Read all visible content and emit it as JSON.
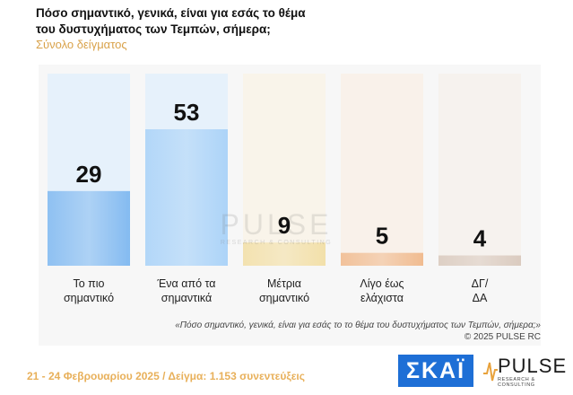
{
  "title_line1": "Πόσο σημαντικό, γενικά, είναι για εσάς το θέμα",
  "title_line2": "του δυστυχήματος των Τεμπών, σήμερα;",
  "subtitle": "Σύνολο δείγματος",
  "watermark": {
    "main": "PULSE",
    "sub": "RESEARCH & CONSULTING"
  },
  "source_note": "«Πόσο σημαντικό, γενικά, είναι για εσάς το το θέμα του δυστυχήματος των Τεμπών, σήμερα;»",
  "copyright": "©  2025  PULSE RC",
  "footer": {
    "text": "21 - 24 Φεβρουαρίου 2025  /  Δείγμα:  1.153 συνεντεύξεις"
  },
  "logos": {
    "skai": "ΣΚΑΪ",
    "pulse_main": "PULSE",
    "pulse_sub": "RESEARCH & CONSULTING"
  },
  "chart_data": {
    "type": "bar",
    "categories": [
      [
        "Το πιο",
        "σημαντικό"
      ],
      [
        "Ένα από τα",
        "σημαντικά"
      ],
      [
        "Μέτρια",
        "σημαντικό"
      ],
      [
        "Λίγο έως",
        "ελάχιστα"
      ],
      [
        "ΔΓ/",
        "ΔΑ"
      ]
    ],
    "values": [
      29,
      53,
      9,
      5,
      4
    ],
    "ylim": [
      0,
      60
    ],
    "colors": [
      "#7fb8f0",
      "#a9d2f8",
      "#f2dfa6",
      "#f0b98c",
      "#d9c9bd"
    ],
    "background_colors": [
      "#e6f1fb",
      "#e6f1fb",
      "#f9f4ea",
      "#f9f1ea",
      "#f6f2ee"
    ],
    "grid": false,
    "legend": "none"
  }
}
